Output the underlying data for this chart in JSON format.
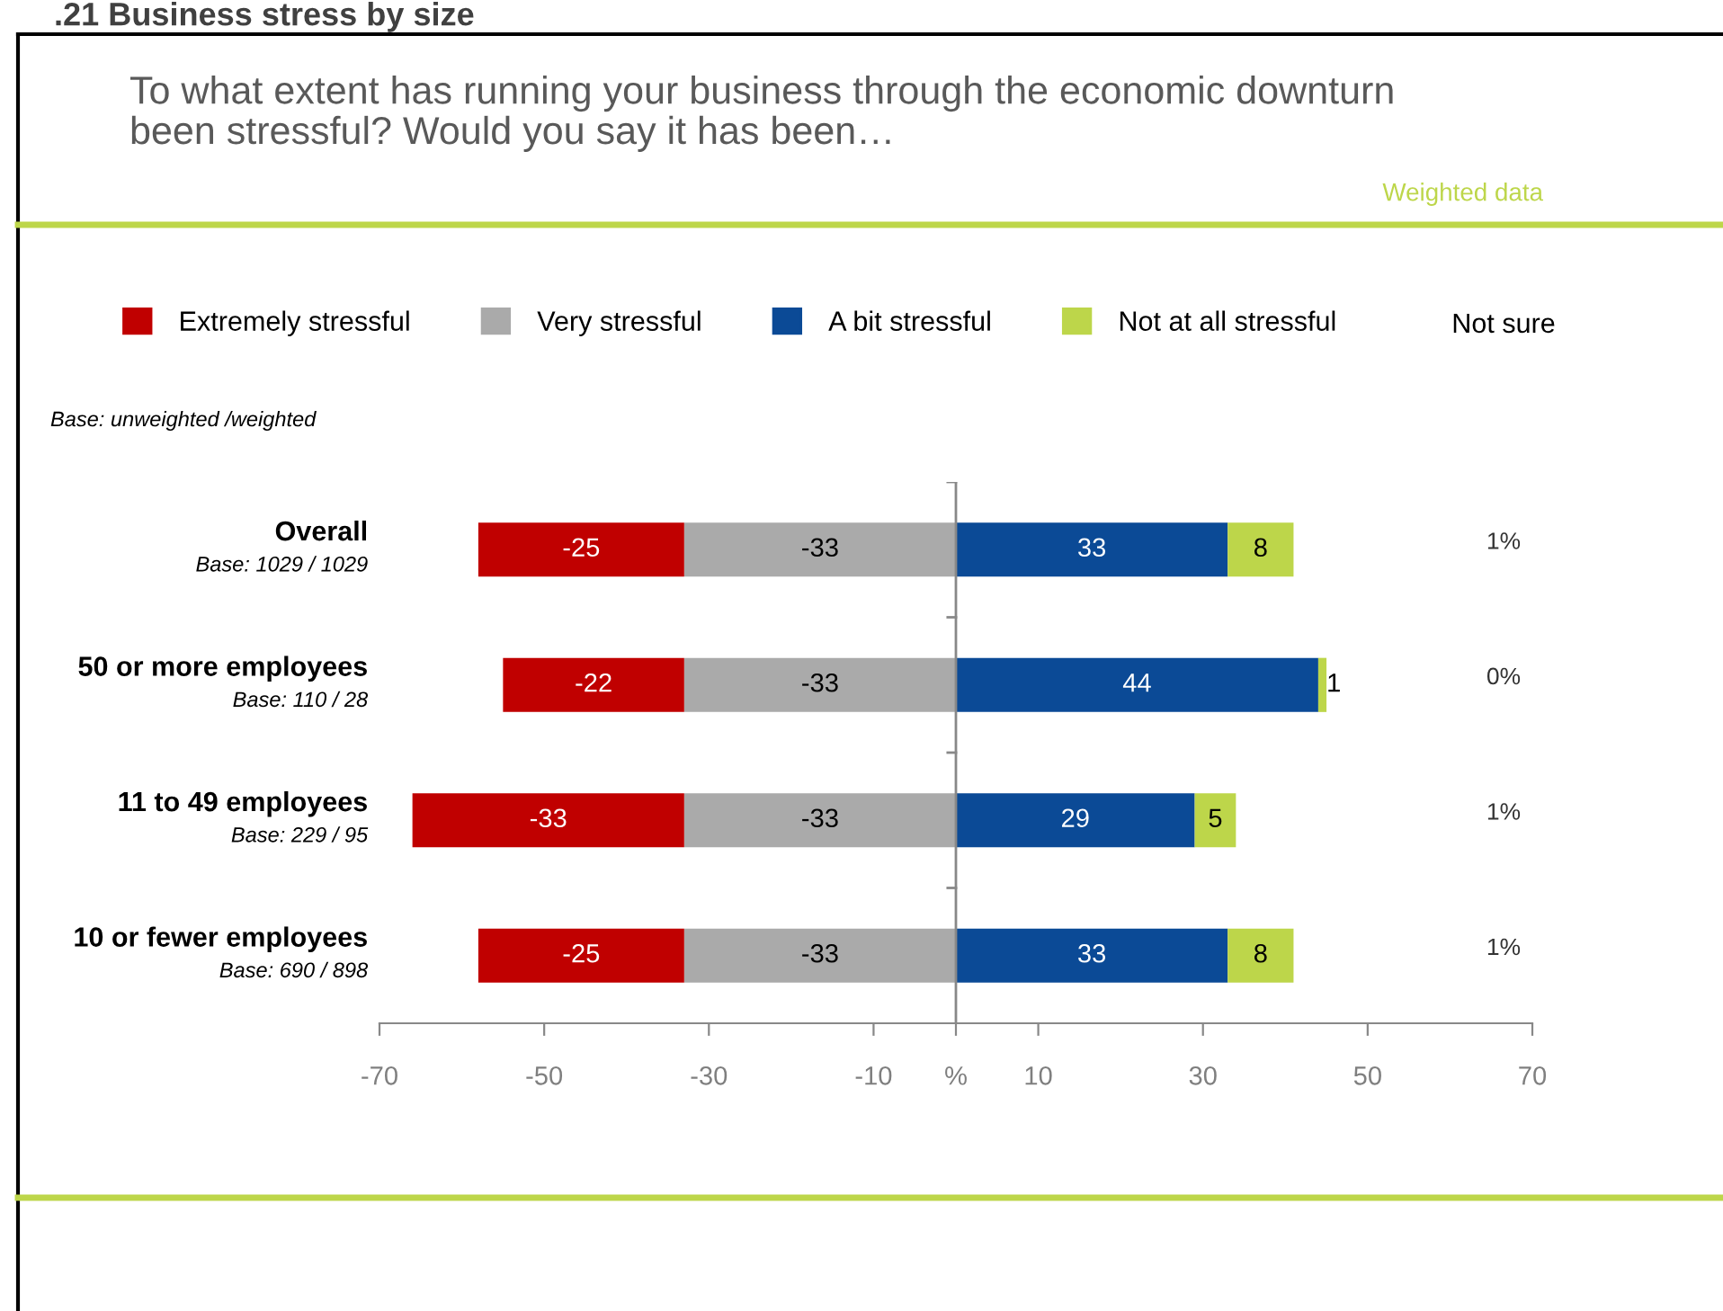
{
  "chart_data": {
    "type": "bar",
    "orientation": "horizontal",
    "stacked": true,
    "title": ".21 Business stress by size",
    "subtitle": "To what extent has running your business through the economic downturn\nbeen stressful? Would you say it has been…",
    "categories": [
      "Overall",
      "50 or more employees",
      "11 to 49 employees",
      "10 or fewer employees"
    ],
    "series": [
      {
        "name": "Very stressful",
        "color": "#aaaaaa",
        "values": [
          -33,
          -33,
          -33,
          -33
        ]
      },
      {
        "name": "Extremely stressful",
        "color": "#c00000",
        "values": [
          -25,
          -22,
          -33,
          -25
        ]
      },
      {
        "name": "A bit stressful",
        "color": "#0b4a96",
        "values": [
          33,
          44,
          29,
          33
        ]
      },
      {
        "name": "Not at all stressful",
        "color": "#bdd64a",
        "values": [
          8,
          1,
          5,
          8
        ]
      }
    ],
    "data_labels": true,
    "xlim": [
      -70,
      70
    ],
    "xticks": [
      -70,
      -50,
      -30,
      -10,
      {
        "value": 0,
        "label": "%"
      },
      10,
      30,
      50,
      70
    ],
    "legend": "top",
    "grid": false,
    "ref_lines": [
      {
        "axis": "x",
        "value": 0,
        "color": "#888888"
      }
    ],
    "annotations": [
      "Weighted data",
      "Base: unweighted /weighted",
      "Not sure",
      "Base: 1029 / 1029",
      "Base: 110 / 28",
      "Base: 229 / 95",
      "Base: 690 / 898",
      "1%",
      "0%",
      "1%",
      "1%"
    ]
  }
}
